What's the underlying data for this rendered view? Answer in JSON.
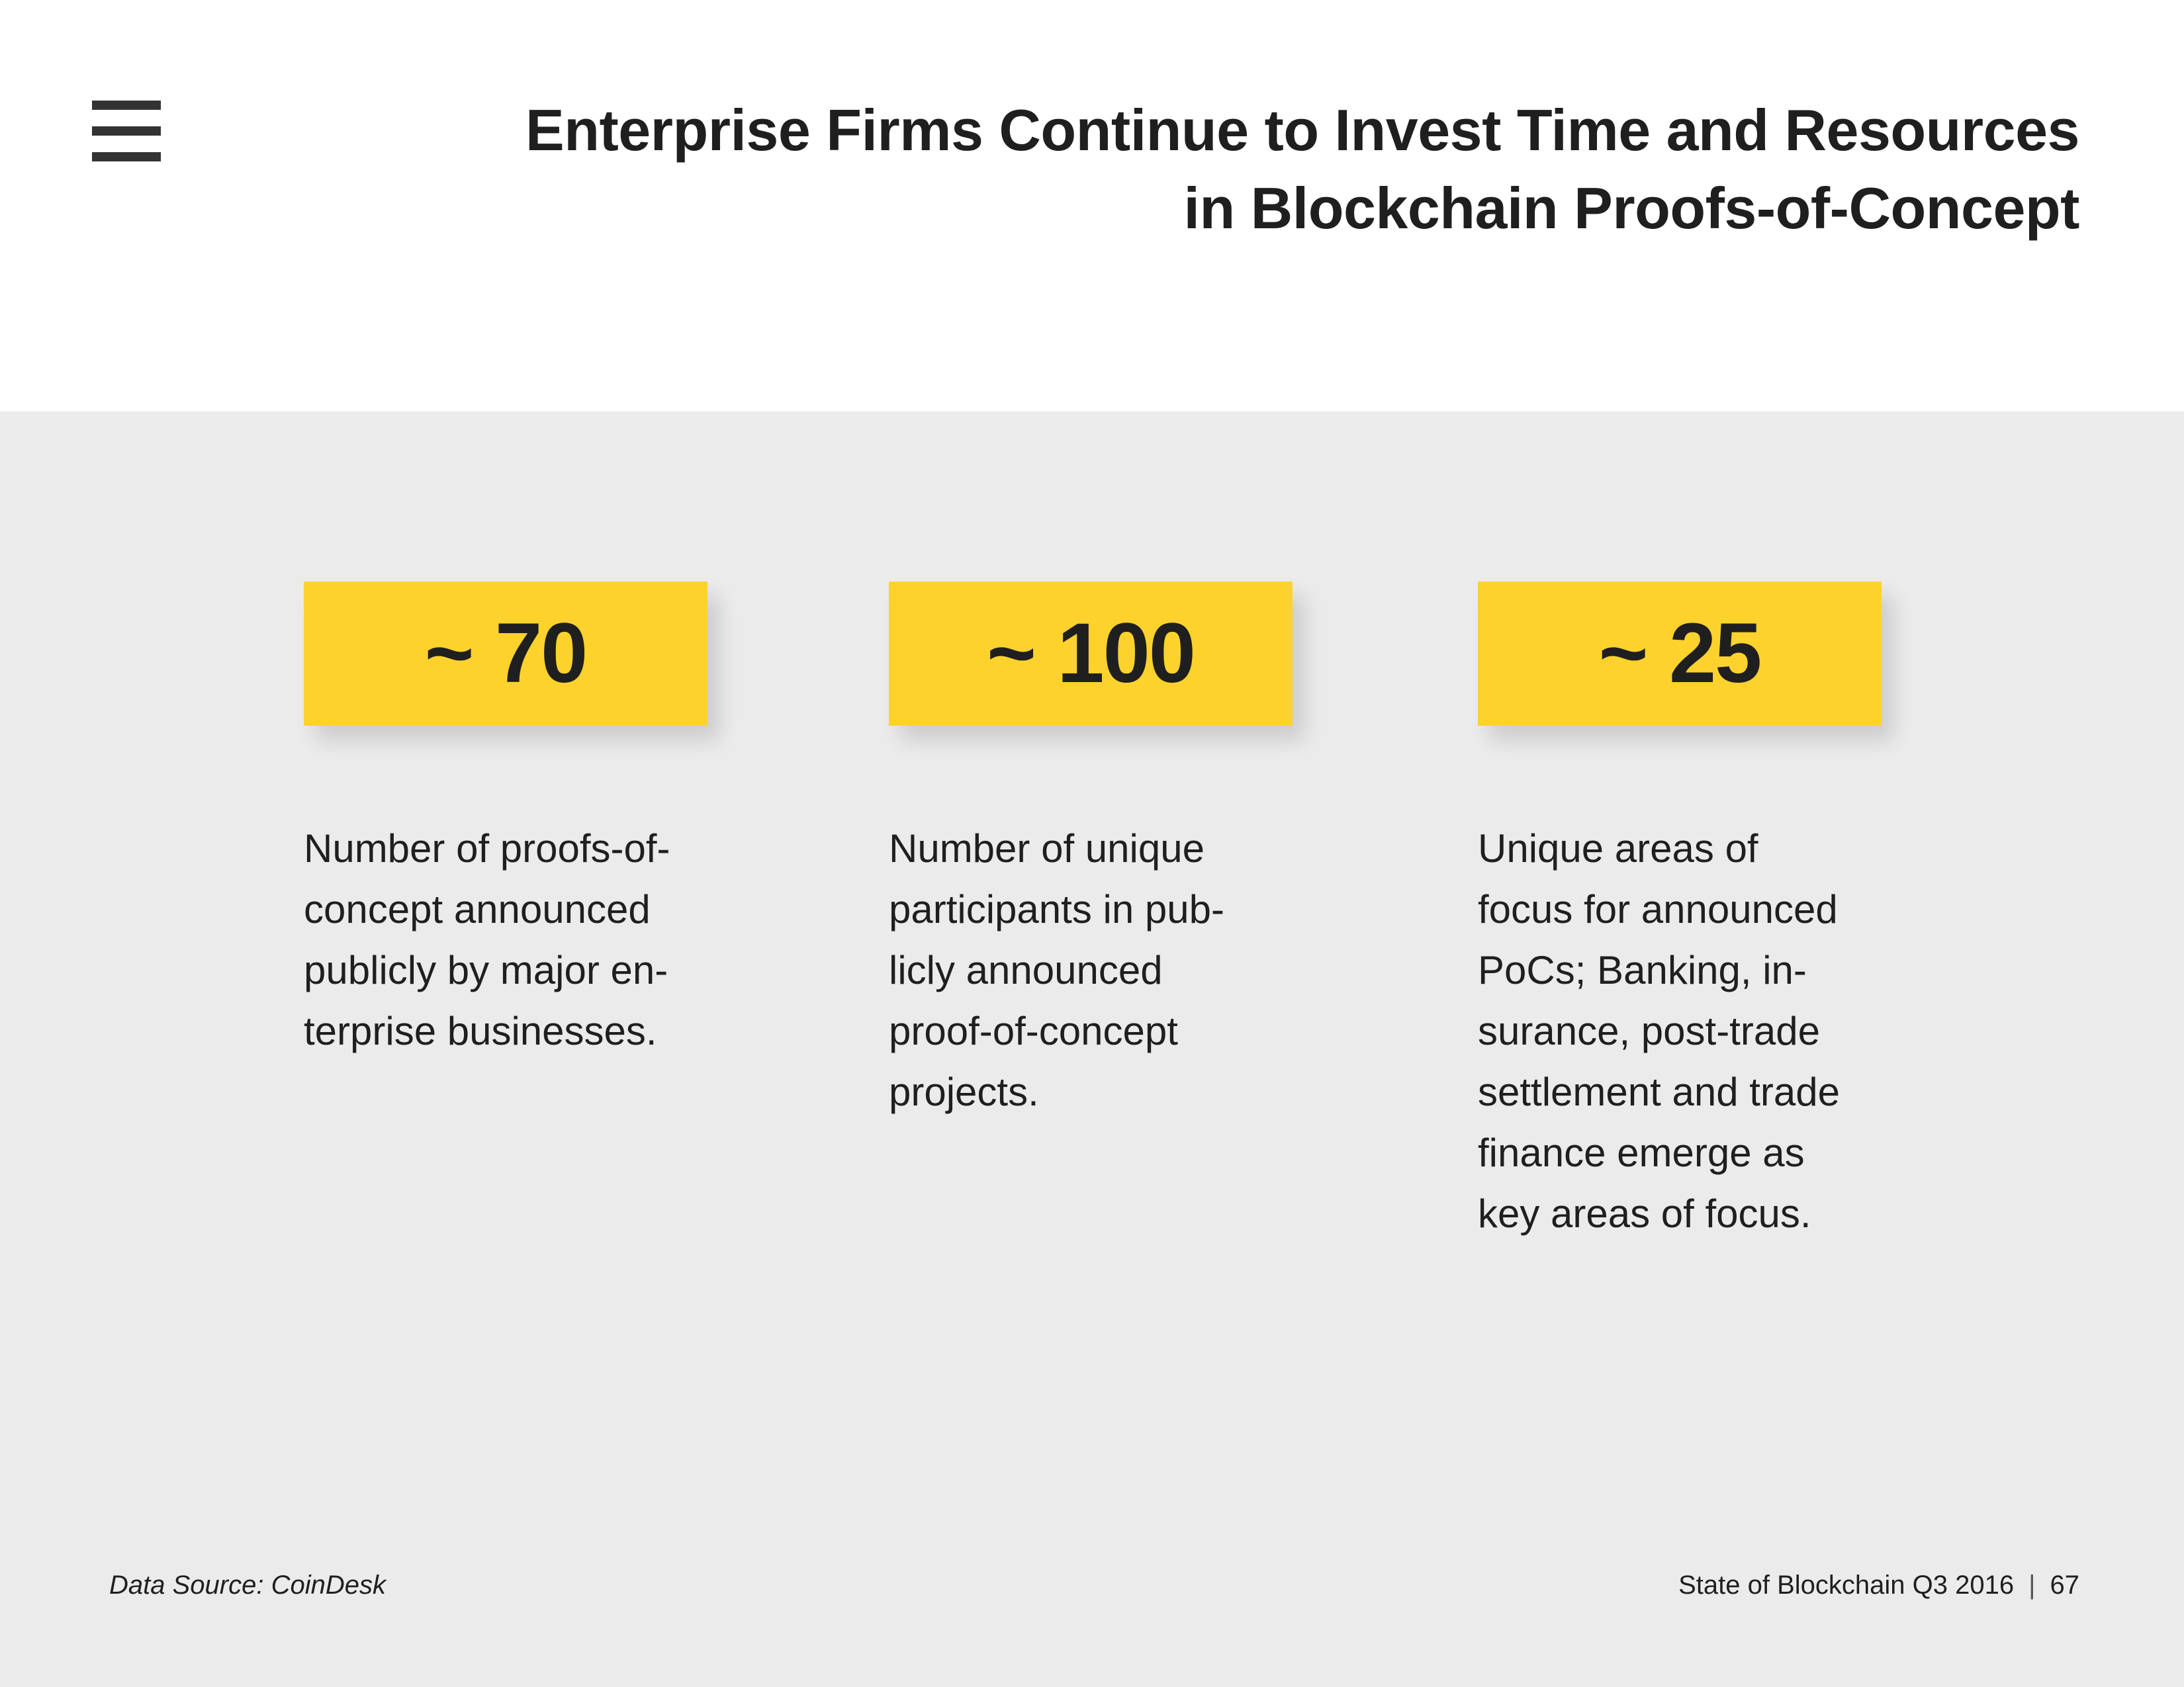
{
  "header": {
    "menu_icon": "hamburger-menu-icon",
    "title_lines": [
      "Enterprise Firms Continue to Invest Time and Resources",
      "in Blockchain Proofs-of-Concept"
    ]
  },
  "stats": [
    {
      "value": "~ 70",
      "description_lines": [
        "Number of proofs-of-",
        "concept announced",
        "publicly by major en-",
        "terprise businesses."
      ]
    },
    {
      "value": "~ 100",
      "description_lines": [
        "Number of unique",
        "participants in pub-",
        "licly announced",
        "proof-of-concept",
        "projects."
      ]
    },
    {
      "value": "~ 25",
      "description_lines": [
        "Unique areas of",
        "focus for announced",
        "PoCs; Banking, in-",
        "surance, post-trade",
        "settlement and trade",
        "finance emerge as",
        "key areas of focus."
      ]
    }
  ],
  "footer": {
    "source": "Data Source: CoinDesk",
    "publication": "State of Blockchain Q3 2016",
    "separator": "|",
    "page_number": "67"
  },
  "colors": {
    "accent": "#fdd22d",
    "band_background": "#ebebeb",
    "text": "#1f1f1f",
    "icon": "#333333"
  }
}
